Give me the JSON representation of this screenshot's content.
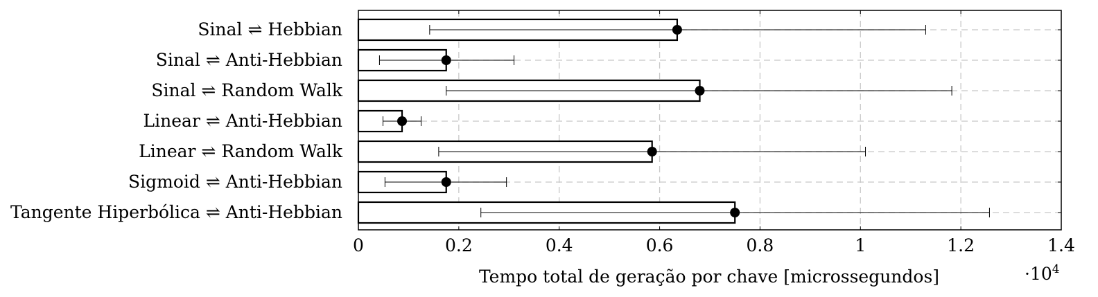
{
  "chart_data": {
    "type": "bar",
    "orientation": "horizontal",
    "categories": [
      "Sinal ⇌ Hebbian",
      "Sinal ⇌ Anti-Hebbian",
      "Sinal ⇌ Random Walk",
      "Linear ⇌ Anti-Hebbian",
      "Linear ⇌ Random Walk",
      "Sigmoid ⇌ Anti-Hebbian",
      "Tangente Hiperbólica ⇌ Anti-Hebbian"
    ],
    "values": [
      6350,
      1750,
      6800,
      870,
      5850,
      1750,
      7500
    ],
    "error_low": [
      1420,
      420,
      1750,
      490,
      1600,
      530,
      2440
    ],
    "error_high": [
      11300,
      3100,
      11820,
      1250,
      10100,
      2950,
      12570
    ],
    "xlabel": "Tempo total de geração por chave [microssegundos]",
    "ylabel": "",
    "xlim": [
      0,
      14000
    ],
    "x_scale_label": "·10",
    "x_scale_exponent": "4",
    "x_ticks": [
      {
        "value": 0,
        "label": "0"
      },
      {
        "value": 2000,
        "label": "0.2"
      },
      {
        "value": 4000,
        "label": "0.4"
      },
      {
        "value": 6000,
        "label": "0.6"
      },
      {
        "value": 8000,
        "label": "0.8"
      },
      {
        "value": 10000,
        "label": "1"
      },
      {
        "value": 12000,
        "label": "1.2"
      },
      {
        "value": 14000,
        "label": "1.4"
      }
    ],
    "grid": true,
    "grid_style": "dashed",
    "bar_fill": "#ffffff",
    "bar_stroke": "#000000",
    "marker_color": "#000000"
  }
}
